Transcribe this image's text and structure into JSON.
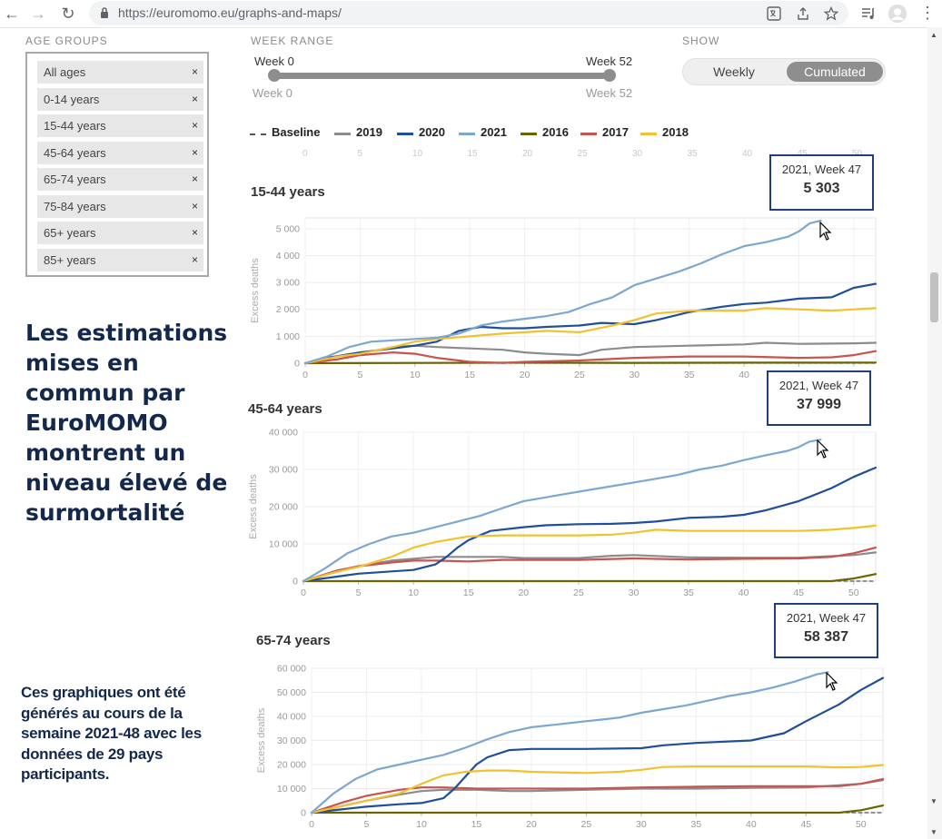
{
  "browser": {
    "url": "https://euromomo.eu/graphs-and-maps/",
    "back_icon": "←",
    "forward_icon": "→",
    "reload_icon": "↻"
  },
  "controls": {
    "age_groups_caption": "AGE GROUPS",
    "age_groups": [
      "All ages",
      "0-14 years",
      "15-44 years",
      "45-64 years",
      "65-74 years",
      "75-84 years",
      "65+ years",
      "85+ years"
    ],
    "remove_symbol": "×",
    "week_range_caption": "WEEK RANGE",
    "week_start": "Week 0",
    "week_end": "Week 52",
    "week_start_min": "Week 0",
    "week_end_max": "Week 52",
    "show_caption": "SHOW",
    "show_options": [
      "Weekly",
      "Cumulated"
    ],
    "show_selected": "Cumulated"
  },
  "legend": [
    {
      "label": "Baseline",
      "color": "#555555",
      "dashed": true
    },
    {
      "label": "2019",
      "color": "#8c8c8c"
    },
    {
      "label": "2020",
      "color": "#1f4e9a"
    },
    {
      "label": "2021",
      "color": "#7ba7d1"
    },
    {
      "label": "2016",
      "color": "#6b6400"
    },
    {
      "label": "2017",
      "color": "#c9534e"
    },
    {
      "label": "2018",
      "color": "#f2c12e"
    }
  ],
  "ghost_axis_ticks": [
    "0",
    "5",
    "10",
    "15",
    "20",
    "25",
    "30",
    "35",
    "40",
    "45",
    "50"
  ],
  "chart_data": [
    {
      "type": "line",
      "title": "15-44 years",
      "ylabel": "Excess deaths",
      "xlabel": "",
      "xlim": [
        0,
        52
      ],
      "ylim": [
        0,
        5400
      ],
      "yticks": [
        0,
        1000,
        2000,
        3000,
        4000,
        5000
      ],
      "ytick_labels": [
        "0",
        "1 000",
        "2 000",
        "3 000",
        "4 000",
        "5 000"
      ],
      "xticks": [
        0,
        5,
        10,
        15,
        20,
        25,
        30,
        35,
        40,
        45,
        50
      ],
      "tooltip": {
        "week": "2021, Week 47",
        "value": "5 303"
      },
      "series": [
        {
          "name": "Baseline",
          "x": [
            0,
            52
          ],
          "values": [
            0,
            0
          ]
        },
        {
          "name": "2016",
          "x": [
            0,
            10,
            20,
            30,
            40,
            52
          ],
          "values": [
            0,
            10,
            20,
            15,
            20,
            25
          ]
        },
        {
          "name": "2019",
          "x": [
            0,
            2,
            5,
            8,
            10,
            12,
            15,
            18,
            20,
            22,
            25,
            27,
            30,
            35,
            40,
            42,
            45,
            50,
            52
          ],
          "values": [
            0,
            200,
            350,
            600,
            650,
            600,
            550,
            500,
            400,
            350,
            300,
            500,
            600,
            650,
            700,
            760,
            720,
            740,
            760
          ]
        },
        {
          "name": "2017",
          "x": [
            0,
            3,
            5,
            8,
            10,
            12,
            15,
            18,
            20,
            25,
            30,
            35,
            40,
            45,
            48,
            50,
            52
          ],
          "values": [
            0,
            150,
            300,
            400,
            350,
            200,
            50,
            10,
            50,
            100,
            200,
            250,
            250,
            200,
            220,
            300,
            450
          ]
        },
        {
          "name": "2020",
          "x": [
            0,
            2,
            5,
            8,
            10,
            12,
            14,
            16,
            18,
            20,
            22,
            25,
            27,
            30,
            32,
            35,
            38,
            40,
            42,
            45,
            48,
            50,
            52
          ],
          "values": [
            0,
            200,
            400,
            550,
            650,
            800,
            1200,
            1350,
            1300,
            1300,
            1350,
            1400,
            1500,
            1450,
            1600,
            1900,
            2100,
            2200,
            2250,
            2400,
            2450,
            2800,
            2950
          ]
        },
        {
          "name": "2018",
          "x": [
            0,
            3,
            5,
            8,
            10,
            12,
            15,
            18,
            20,
            22,
            25,
            28,
            30,
            32,
            35,
            38,
            40,
            42,
            45,
            48,
            50,
            52
          ],
          "values": [
            0,
            250,
            350,
            600,
            800,
            900,
            1000,
            1100,
            1150,
            1200,
            1150,
            1400,
            1600,
            1850,
            1950,
            1950,
            1950,
            2050,
            2000,
            1950,
            2000,
            2050
          ]
        },
        {
          "name": "2021",
          "x": [
            0,
            2,
            4,
            6,
            8,
            10,
            12,
            14,
            16,
            18,
            20,
            22,
            24,
            26,
            28,
            30,
            32,
            34,
            36,
            38,
            40,
            42,
            44,
            45,
            46,
            47
          ],
          "values": [
            0,
            250,
            600,
            800,
            850,
            900,
            950,
            1100,
            1400,
            1550,
            1650,
            1750,
            1900,
            2200,
            2450,
            2900,
            3150,
            3400,
            3700,
            4050,
            4350,
            4500,
            4700,
            4900,
            5200,
            5303
          ]
        }
      ]
    },
    {
      "type": "line",
      "title": "45-64 years",
      "ylabel": "Excess deaths",
      "xlabel": "",
      "xlim": [
        0,
        52
      ],
      "ylim": [
        0,
        40000
      ],
      "yticks": [
        0,
        10000,
        20000,
        30000,
        40000
      ],
      "ytick_labels": [
        "0",
        "10 000",
        "20 000",
        "30 000",
        "40 000"
      ],
      "xticks": [
        0,
        5,
        10,
        15,
        20,
        25,
        30,
        35,
        40,
        45,
        50
      ],
      "tooltip": {
        "week": "2021, Week 47",
        "value": "37 999"
      },
      "series": [
        {
          "name": "Baseline",
          "x": [
            0,
            52
          ],
          "values": [
            0,
            0
          ]
        },
        {
          "name": "2016",
          "x": [
            0,
            10,
            20,
            30,
            40,
            48,
            50,
            52
          ],
          "values": [
            0,
            0,
            0,
            0,
            0,
            0,
            700,
            1900
          ]
        },
        {
          "name": "2019",
          "x": [
            0,
            3,
            5,
            8,
            10,
            12,
            15,
            18,
            20,
            25,
            28,
            30,
            35,
            40,
            45,
            50,
            52
          ],
          "values": [
            0,
            2500,
            4000,
            5500,
            6000,
            6500,
            6500,
            6500,
            6200,
            6200,
            6800,
            7000,
            6400,
            6300,
            6300,
            7000,
            7700
          ]
        },
        {
          "name": "2017",
          "x": [
            0,
            3,
            5,
            8,
            10,
            12,
            15,
            18,
            20,
            25,
            30,
            35,
            40,
            45,
            48,
            50,
            52
          ],
          "values": [
            0,
            2800,
            4000,
            5000,
            5500,
            5500,
            5300,
            5700,
            5700,
            5700,
            6100,
            5800,
            6000,
            6100,
            6500,
            7500,
            9000
          ]
        },
        {
          "name": "2020",
          "x": [
            0,
            3,
            5,
            8,
            10,
            12,
            13,
            14,
            15,
            17,
            20,
            22,
            25,
            28,
            30,
            32,
            35,
            38,
            40,
            42,
            45,
            48,
            50,
            52
          ],
          "values": [
            0,
            1200,
            2000,
            2600,
            3000,
            4500,
            6500,
            9000,
            11000,
            13500,
            14500,
            15000,
            15300,
            15400,
            15600,
            16000,
            17000,
            17300,
            17800,
            19000,
            21500,
            25000,
            28000,
            30500
          ]
        },
        {
          "name": "2018",
          "x": [
            0,
            3,
            5,
            8,
            10,
            12,
            15,
            18,
            20,
            25,
            28,
            30,
            32,
            35,
            40,
            45,
            48,
            50,
            52
          ],
          "values": [
            0,
            2500,
            3800,
            6500,
            9000,
            10500,
            12000,
            12300,
            12300,
            12300,
            12500,
            13000,
            13800,
            13500,
            13500,
            13500,
            13800,
            14300,
            14900
          ]
        },
        {
          "name": "2021",
          "x": [
            0,
            2,
            4,
            6,
            8,
            10,
            12,
            14,
            16,
            18,
            20,
            22,
            24,
            26,
            28,
            30,
            32,
            34,
            36,
            38,
            40,
            42,
            44,
            45,
            46,
            47
          ],
          "values": [
            0,
            3500,
            7500,
            10000,
            12000,
            13000,
            14500,
            16000,
            17500,
            19500,
            21500,
            22500,
            23500,
            24500,
            25500,
            26500,
            27500,
            28500,
            30000,
            31000,
            32500,
            33800,
            35000,
            36000,
            37500,
            37999
          ]
        }
      ]
    },
    {
      "type": "line",
      "title": "65-74 years",
      "ylabel": "Excess deaths",
      "xlabel": "",
      "xlim": [
        0,
        52
      ],
      "ylim": [
        0,
        60000
      ],
      "yticks": [
        0,
        10000,
        20000,
        30000,
        40000,
        50000,
        60000
      ],
      "ytick_labels": [
        "0",
        "10 000",
        "20 000",
        "30 000",
        "40 000",
        "50 000",
        "60 000"
      ],
      "xticks": [
        0,
        5,
        10,
        15,
        20,
        25,
        30,
        35,
        40,
        45,
        50
      ],
      "tooltip": {
        "week": "2021, Week 47",
        "value": "58 387"
      },
      "series": [
        {
          "name": "Baseline",
          "x": [
            0,
            52
          ],
          "values": [
            0,
            0
          ]
        },
        {
          "name": "2016",
          "x": [
            0,
            10,
            20,
            30,
            40,
            48,
            50,
            52
          ],
          "values": [
            0,
            0,
            0,
            0,
            0,
            0,
            1000,
            3000
          ]
        },
        {
          "name": "2019",
          "x": [
            0,
            3,
            5,
            8,
            10,
            12,
            15,
            18,
            20,
            25,
            30,
            35,
            40,
            45,
            50,
            52
          ],
          "values": [
            0,
            3000,
            5000,
            7500,
            9000,
            9500,
            9500,
            9000,
            9000,
            9500,
            10000,
            10000,
            10300,
            10500,
            12000,
            13500
          ]
        },
        {
          "name": "2017",
          "x": [
            0,
            3,
            5,
            8,
            10,
            12,
            15,
            18,
            20,
            25,
            30,
            35,
            40,
            45,
            48,
            50,
            52
          ],
          "values": [
            0,
            4500,
            7000,
            9500,
            10500,
            10500,
            10000,
            10000,
            10000,
            10000,
            10500,
            10800,
            11000,
            11000,
            11000,
            12000,
            14000
          ]
        },
        {
          "name": "2020",
          "x": [
            0,
            3,
            5,
            8,
            10,
            12,
            13,
            14,
            15,
            16,
            18,
            20,
            22,
            25,
            30,
            32,
            35,
            40,
            43,
            45,
            48,
            50,
            52
          ],
          "values": [
            0,
            1500,
            2500,
            3500,
            4000,
            6000,
            10000,
            15000,
            20000,
            23000,
            26000,
            26500,
            26500,
            26500,
            26800,
            28000,
            29000,
            30000,
            33000,
            38000,
            45000,
            51000,
            56000
          ]
        },
        {
          "name": "2018",
          "x": [
            0,
            3,
            5,
            8,
            10,
            12,
            14,
            16,
            18,
            20,
            25,
            28,
            30,
            32,
            35,
            40,
            45,
            48,
            50,
            52
          ],
          "values": [
            0,
            3000,
            5000,
            8000,
            12000,
            15500,
            17000,
            17500,
            17500,
            17000,
            16500,
            17000,
            17800,
            19000,
            19200,
            19200,
            19200,
            18800,
            19000,
            19800
          ]
        },
        {
          "name": "2021",
          "x": [
            0,
            2,
            4,
            6,
            8,
            10,
            12,
            14,
            16,
            18,
            20,
            22,
            24,
            26,
            28,
            30,
            32,
            34,
            36,
            38,
            40,
            42,
            44,
            45,
            46,
            47
          ],
          "values": [
            0,
            8000,
            14000,
            18000,
            20000,
            22000,
            24000,
            27000,
            30500,
            33500,
            35500,
            36500,
            37500,
            38500,
            39500,
            41500,
            43000,
            44500,
            46500,
            48500,
            50000,
            52000,
            54500,
            56000,
            57500,
            58387
          ]
        }
      ]
    }
  ],
  "headline": "Les estimations mises en commun par EuroMOMO montrent un niveau élevé de surmortalité",
  "subtext": "Ces graphiques ont été générés au cours de la semaine 2021-48 avec les données de 29 pays participants."
}
